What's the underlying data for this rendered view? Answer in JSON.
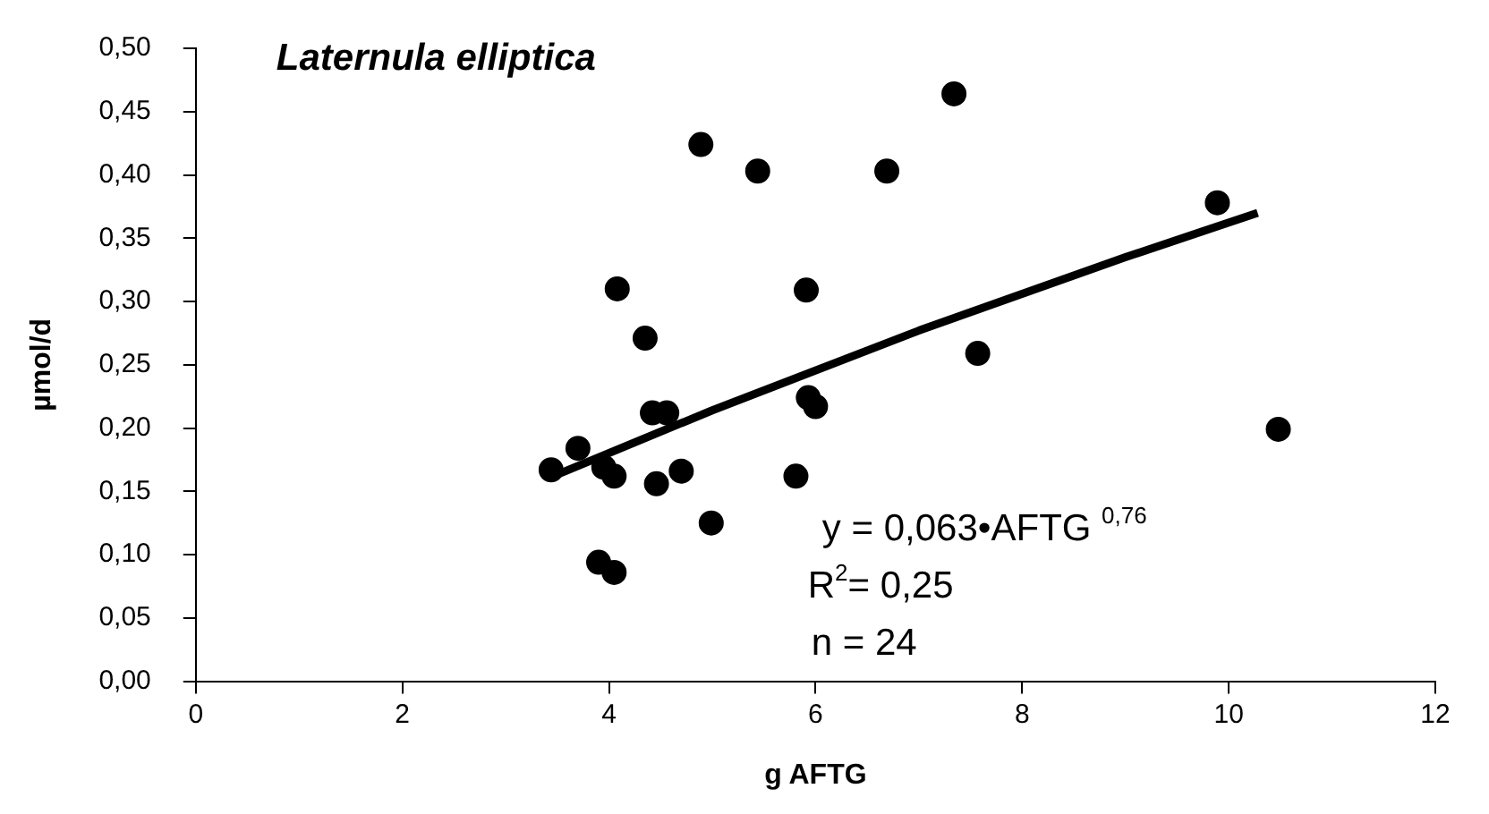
{
  "chart_data": {
    "type": "scatter",
    "title": "Laternula elliptica",
    "xlabel": "g AFTG",
    "ylabel": "µmol/d",
    "xlim": [
      0,
      12
    ],
    "xticks": [
      0,
      2,
      4,
      6,
      8,
      10,
      12
    ],
    "ylim": [
      0,
      0.5
    ],
    "yticks": [
      {
        "value": 0,
        "label": "0,00"
      },
      {
        "value": 0.05,
        "label": "0,05"
      },
      {
        "value": 0.1,
        "label": "0,10"
      },
      {
        "value": 0.15,
        "label": "0,15"
      },
      {
        "value": 0.2,
        "label": "0,20"
      },
      {
        "value": 0.25,
        "label": "0,25"
      },
      {
        "value": 0.3,
        "label": "0,30"
      },
      {
        "value": 0.35,
        "label": "0,35"
      },
      {
        "value": 0.4,
        "label": "0,40"
      },
      {
        "value": 0.45,
        "label": "0,45"
      },
      {
        "value": 0.5,
        "label": "0,50"
      }
    ],
    "grid": false,
    "legend": false,
    "series": [
      {
        "color": "#000000",
        "marker": "circle",
        "x": [
          4.89,
          5.44,
          6.69,
          7.34,
          4.08,
          5.91,
          4.35,
          7.57,
          4.42,
          4.56,
          5.93,
          6.0,
          3.7,
          3.44,
          3.95,
          4.05,
          4.46,
          4.7,
          5.81,
          4.99,
          3.9,
          4.05,
          9.89,
          10.48
        ],
        "values": [
          0.424,
          0.403,
          0.403,
          0.464,
          0.31,
          0.309,
          0.271,
          0.259,
          0.212,
          0.212,
          0.224,
          0.217,
          0.184,
          0.167,
          0.169,
          0.162,
          0.156,
          0.166,
          0.162,
          0.125,
          0.094,
          0.086,
          0.378,
          0.199
        ]
      },
      {
        "type": "line",
        "color": "#000000",
        "marker": "none",
        "line_style": "solid",
        "x": [
          3.46,
          5,
          7,
          9,
          10.28
        ],
        "values": [
          0.162,
          0.214,
          0.277,
          0.335,
          0.37
        ]
      }
    ],
    "annotations": [
      "y = 0,063•AFTG $^{0,76}$",
      "R$^{2}$= 0,25",
      "n = 24"
    ]
  }
}
